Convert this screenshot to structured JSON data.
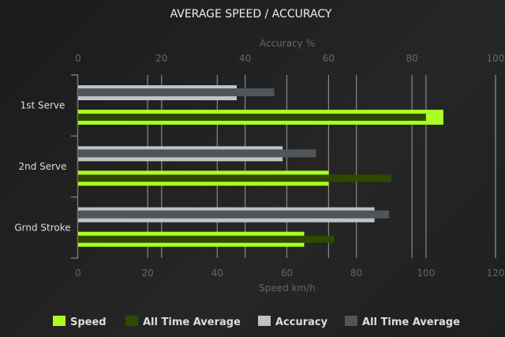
{
  "chart_data": {
    "type": "bar",
    "orientation": "horizontal",
    "title": "AVERAGE SPEED / ACCURACY",
    "categories": [
      "1st Serve",
      "2nd Serve",
      "Grnd Stroke"
    ],
    "x_bottom": {
      "label": "Speed km/h",
      "range": [
        0,
        120
      ],
      "ticks": [
        0,
        20,
        40,
        60,
        80,
        100,
        120
      ]
    },
    "x_top": {
      "label": "Accuracy %",
      "range": [
        0,
        100
      ],
      "ticks": [
        0,
        20,
        40,
        60,
        80,
        100
      ]
    },
    "grid": true,
    "legend_placement": "bottom",
    "series": [
      {
        "name": "Speed",
        "axis": "bottom",
        "color": "#aaff22",
        "values": [
          105,
          72,
          65
        ]
      },
      {
        "name": "All Time Average",
        "axis": "bottom",
        "color": "#2e4a00",
        "values": [
          100,
          90,
          73.5
        ]
      },
      {
        "name": "Accuracy",
        "axis": "top",
        "color": "#bfc3c4",
        "values": [
          38,
          49,
          71
        ]
      },
      {
        "name": "All Time Average",
        "axis": "top",
        "color": "#50555a",
        "values": [
          47,
          57,
          74.5
        ]
      }
    ]
  }
}
